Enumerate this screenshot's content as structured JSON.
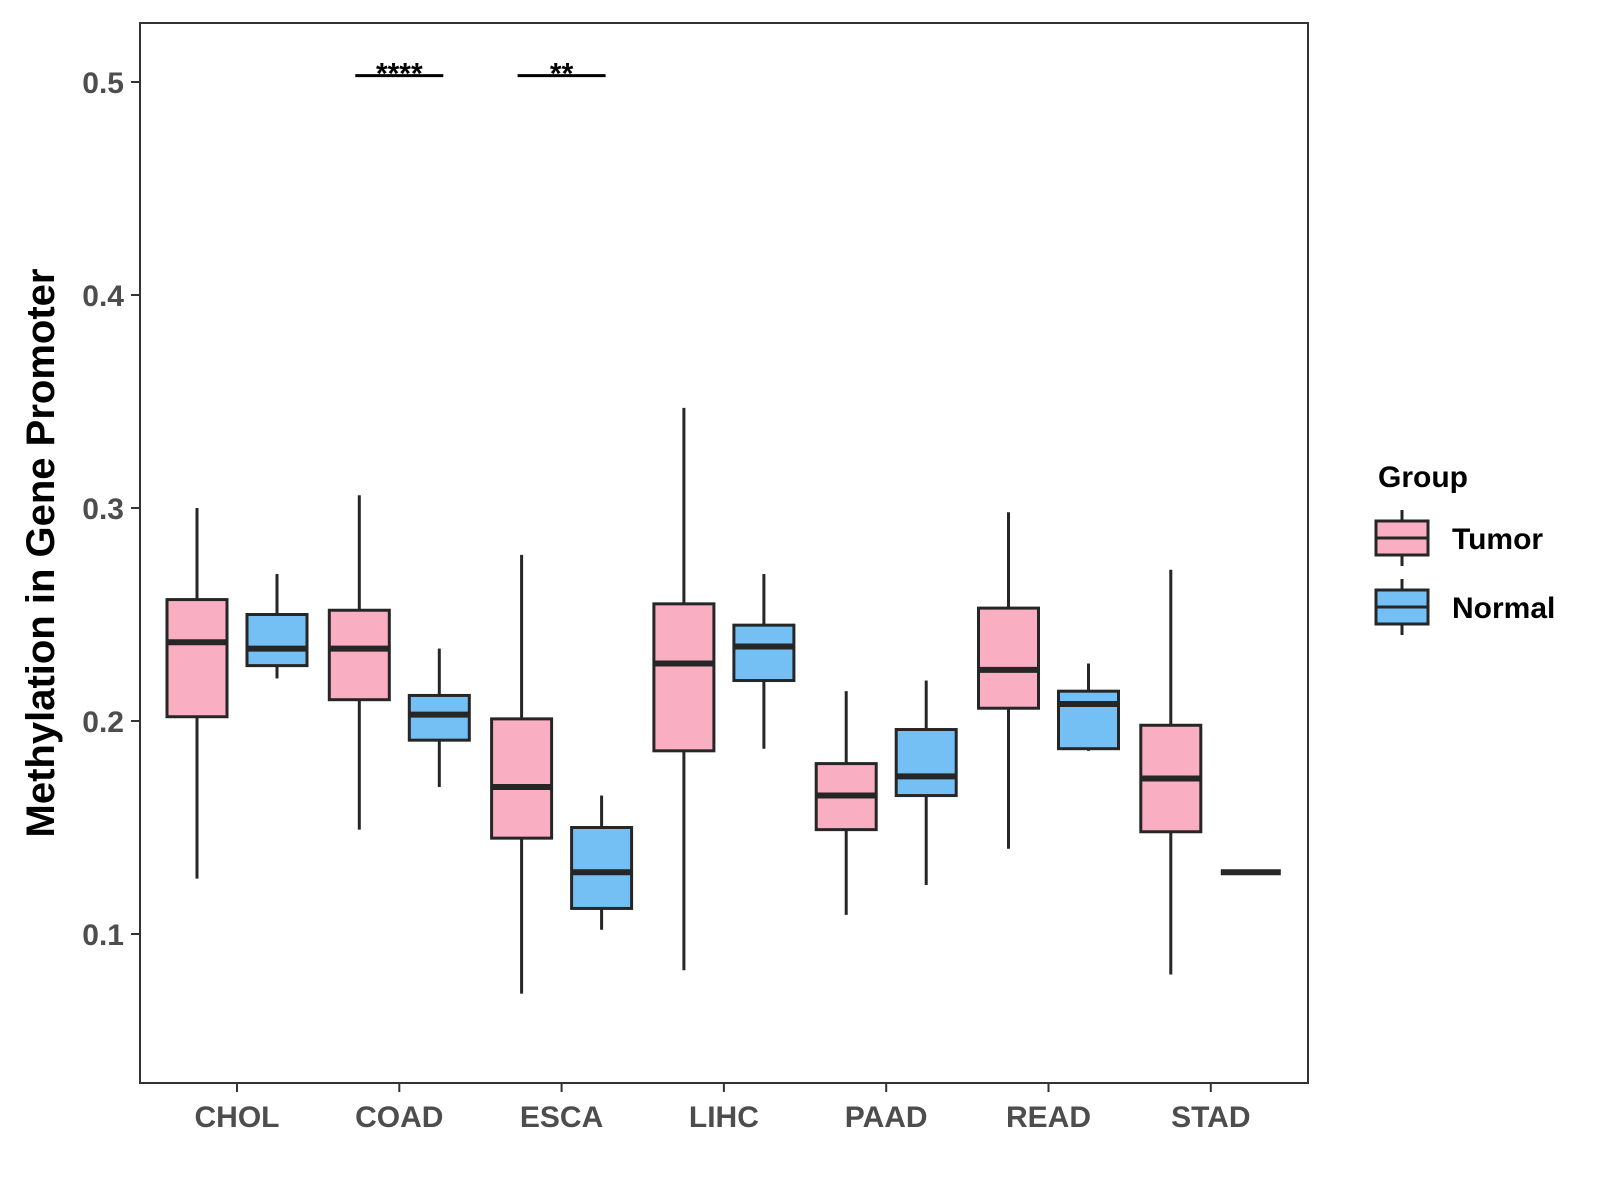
{
  "chart_data": {
    "type": "boxplot",
    "title": "",
    "xlabel": "",
    "ylabel": "Methylation in Gene Promoter",
    "ylim": [
      0.03,
      0.525
    ],
    "yticks": [
      0.1,
      0.2,
      0.3,
      0.4,
      0.5
    ],
    "ytick_labels": [
      "0.1",
      "0.2",
      "0.3",
      "0.4",
      "0.5"
    ],
    "categories": [
      "CHOL",
      "COAD",
      "ESCA",
      "LIHC",
      "PAAD",
      "READ",
      "STAD"
    ],
    "legend": {
      "title": "Group",
      "position": "right",
      "entries": [
        {
          "name": "Tumor",
          "color": "#F9AEC1"
        },
        {
          "name": "Normal",
          "color": "#74C0F5"
        }
      ]
    },
    "series": [
      {
        "name": "Tumor",
        "color": "#F9AEC1",
        "boxes": [
          {
            "category": "CHOL",
            "min": 0.126,
            "q1": 0.202,
            "median": 0.237,
            "q3": 0.257,
            "max": 0.3
          },
          {
            "category": "COAD",
            "min": 0.149,
            "q1": 0.21,
            "median": 0.234,
            "q3": 0.252,
            "max": 0.306
          },
          {
            "category": "ESCA",
            "min": 0.072,
            "q1": 0.145,
            "median": 0.169,
            "q3": 0.201,
            "max": 0.278
          },
          {
            "category": "LIHC",
            "min": 0.083,
            "q1": 0.186,
            "median": 0.227,
            "q3": 0.255,
            "max": 0.347
          },
          {
            "category": "PAAD",
            "min": 0.109,
            "q1": 0.149,
            "median": 0.165,
            "q3": 0.18,
            "max": 0.214
          },
          {
            "category": "READ",
            "min": 0.14,
            "q1": 0.206,
            "median": 0.224,
            "q3": 0.253,
            "max": 0.298
          },
          {
            "category": "STAD",
            "min": 0.081,
            "q1": 0.148,
            "median": 0.173,
            "q3": 0.198,
            "max": 0.271
          }
        ]
      },
      {
        "name": "Normal",
        "color": "#74C0F5",
        "boxes": [
          {
            "category": "CHOL",
            "min": 0.22,
            "q1": 0.226,
            "median": 0.234,
            "q3": 0.25,
            "max": 0.269
          },
          {
            "category": "COAD",
            "min": 0.169,
            "q1": 0.191,
            "median": 0.203,
            "q3": 0.212,
            "max": 0.234
          },
          {
            "category": "ESCA",
            "min": 0.102,
            "q1": 0.112,
            "median": 0.129,
            "q3": 0.15,
            "max": 0.165
          },
          {
            "category": "LIHC",
            "min": 0.187,
            "q1": 0.219,
            "median": 0.235,
            "q3": 0.245,
            "max": 0.269
          },
          {
            "category": "PAAD",
            "min": 0.123,
            "q1": 0.165,
            "median": 0.174,
            "q3": 0.196,
            "max": 0.219
          },
          {
            "category": "READ",
            "min": 0.186,
            "q1": 0.187,
            "median": 0.208,
            "q3": 0.214,
            "max": 0.227
          },
          {
            "category": "STAD",
            "min": 0.129,
            "q1": 0.129,
            "median": 0.129,
            "q3": 0.129,
            "max": 0.129
          }
        ]
      }
    ],
    "annotations": [
      {
        "category": "COAD",
        "text": "****",
        "y": 0.503
      },
      {
        "category": "ESCA",
        "text": "**",
        "y": 0.503
      }
    ]
  }
}
